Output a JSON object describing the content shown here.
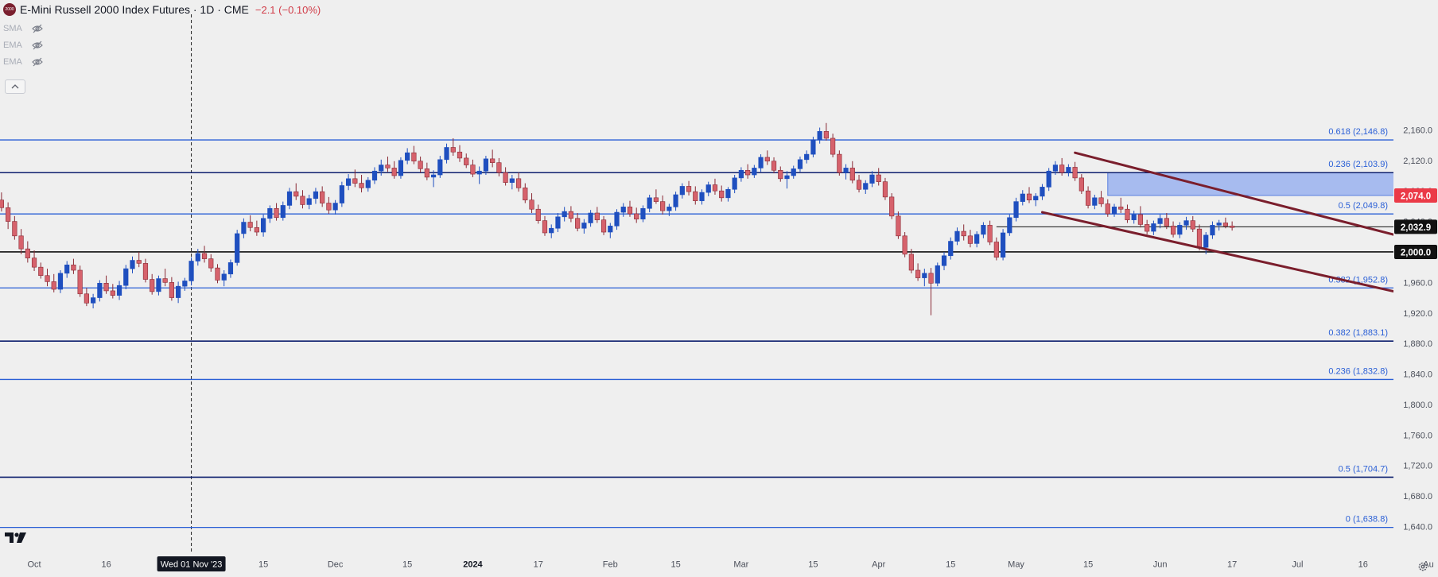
{
  "header": {
    "logo_text": "2000",
    "title": "E-Mini Russell 2000 Index Futures · 1D · CME",
    "change": "−2.1 (−0.10%)"
  },
  "indicators": [
    {
      "label": "SMA",
      "icon": "eye-off-icon"
    },
    {
      "label": "EMA",
      "icon": "eye-off-icon"
    },
    {
      "label": "EMA",
      "icon": "eye-off-icon"
    }
  ],
  "colors": {
    "background": "#efefef",
    "up": "#1f4fbf",
    "down": "#d6626c",
    "fib_line": "#2a5fd6",
    "fib_label": "#2a5fd6",
    "trendline": "#7a1e2c",
    "zone": "#8fa9ef",
    "price_tag": "#eb3a47",
    "black_tag": "#111111",
    "axis_text": "#4b4f5a"
  },
  "chart_data": {
    "type": "candlestick",
    "title": "E-Mini Russell 2000 Index Futures · 1D · CME",
    "ylim": [
      1622,
      2176
    ],
    "y_ticks": [
      1640,
      1680,
      1720,
      1760,
      1800,
      1840,
      1880,
      1920,
      1960,
      2000,
      2040,
      2080,
      2120,
      2160
    ],
    "y_tick_labels": [
      "1,640.0",
      "1,680.0",
      "1,720.0",
      "1,760.0",
      "1,800.0",
      "1,840.0",
      "1,880.0",
      "1,920.0",
      "1,960.0",
      "2,000.0",
      "2,040.0",
      "2,080.0",
      "2,120.0",
      "2,160.0"
    ],
    "x_labels": [
      "Oct",
      "16",
      "Wed 01 Nov '23",
      "15",
      "Dec",
      "15",
      "2024",
      "17",
      "Feb",
      "15",
      "Mar",
      "15",
      "Apr",
      "15",
      "May",
      "15",
      "Jun",
      "17",
      "Jul",
      "16",
      "Au"
    ],
    "x_label_bars": [
      5,
      16,
      29,
      40,
      51,
      62,
      72,
      82,
      93,
      103,
      113,
      124,
      134,
      145,
      155,
      166,
      177,
      188,
      198,
      208,
      218
    ],
    "crosshair_label": "Wed 01 Nov '23",
    "crosshair_bar": 29,
    "fib_levels": [
      {
        "value": 2146.8,
        "label": "0.618 (2,146.8)",
        "style": "blue"
      },
      {
        "value": 2103.9,
        "label": "0.236 (2,103.9)",
        "style": "navy"
      },
      {
        "value": 2049.8,
        "label": "0.5 (2,049.8)",
        "style": "blue"
      },
      {
        "value": 1952.8,
        "label": "0.382 (1,952.8)",
        "style": "blue"
      },
      {
        "value": 1883.1,
        "label": "0.382 (1,883.1)",
        "style": "navy"
      },
      {
        "value": 1832.8,
        "label": "0.236 (1,832.8)",
        "style": "blue"
      },
      {
        "value": 1704.7,
        "label": "0.5 (1,704.7)",
        "style": "navy"
      },
      {
        "value": 1638.8,
        "label": "0 (1,638.8)",
        "style": "blue"
      }
    ],
    "horizontal_lines": [
      {
        "value": 2000.0,
        "label": "2,000.0",
        "color": "black"
      },
      {
        "value": 2032.9,
        "label": "2,032.9",
        "color": "black",
        "thin": true,
        "from_bar": 152
      }
    ],
    "price_tags": [
      {
        "value": 2074.0,
        "label": "2,074.0",
        "color": "red"
      },
      {
        "value": 2032.9,
        "label": "2,032.9",
        "color": "black"
      },
      {
        "value": 2000.0,
        "label": "2,000.0",
        "color": "black"
      }
    ],
    "zone": {
      "from_bar": 169,
      "to_bar": 213,
      "top": 2104,
      "bottom": 2074
    },
    "trendlines": [
      {
        "x1": 164,
        "y1": 2130,
        "x2": 218,
        "y2": 2011
      },
      {
        "x1": 159,
        "y1": 2052,
        "x2": 218,
        "y2": 1938
      }
    ],
    "candles": [
      [
        2068,
        2078,
        2053,
        2058
      ],
      [
        2058,
        2065,
        2030,
        2040
      ],
      [
        2040,
        2047,
        2016,
        2021
      ],
      [
        2021,
        2030,
        1997,
        2004
      ],
      [
        2004,
        2014,
        1986,
        1992
      ],
      [
        1992,
        2002,
        1975,
        1980
      ],
      [
        1980,
        1986,
        1965,
        1969
      ],
      [
        1969,
        1978,
        1955,
        1961
      ],
      [
        1961,
        1971,
        1947,
        1951
      ],
      [
        1951,
        1976,
        1946,
        1972
      ],
      [
        1972,
        1988,
        1966,
        1983
      ],
      [
        1983,
        1991,
        1971,
        1976
      ],
      [
        1976,
        1982,
        1941,
        1945
      ],
      [
        1945,
        1953,
        1929,
        1933
      ],
      [
        1933,
        1945,
        1926,
        1940
      ],
      [
        1940,
        1963,
        1935,
        1959
      ],
      [
        1959,
        1969,
        1945,
        1949
      ],
      [
        1949,
        1958,
        1939,
        1943
      ],
      [
        1943,
        1962,
        1937,
        1956
      ],
      [
        1956,
        1983,
        1951,
        1978
      ],
      [
        1978,
        1994,
        1972,
        1989
      ],
      [
        1989,
        2000,
        1980,
        1985
      ],
      [
        1985,
        1991,
        1960,
        1964
      ],
      [
        1964,
        1971,
        1944,
        1948
      ],
      [
        1948,
        1969,
        1943,
        1965
      ],
      [
        1965,
        1978,
        1955,
        1960
      ],
      [
        1960,
        1967,
        1936,
        1940
      ],
      [
        1940,
        1961,
        1933,
        1955
      ],
      [
        1955,
        1966,
        1949,
        1962
      ],
      [
        1962,
        1993,
        1956,
        1988
      ],
      [
        1988,
        2004,
        1982,
        1998
      ],
      [
        1998,
        2008,
        1986,
        1991
      ],
      [
        1991,
        1997,
        1974,
        1979
      ],
      [
        1979,
        1984,
        1959,
        1963
      ],
      [
        1963,
        1976,
        1955,
        1971
      ],
      [
        1971,
        1990,
        1966,
        1986
      ],
      [
        1986,
        2029,
        1982,
        2024
      ],
      [
        2024,
        2044,
        2018,
        2039
      ],
      [
        2039,
        2048,
        2027,
        2032
      ],
      [
        2032,
        2041,
        2021,
        2026
      ],
      [
        2026,
        2049,
        2020,
        2044
      ],
      [
        2044,
        2061,
        2038,
        2057
      ],
      [
        2057,
        2064,
        2041,
        2045
      ],
      [
        2045,
        2066,
        2041,
        2061
      ],
      [
        2061,
        2084,
        2056,
        2079
      ],
      [
        2079,
        2090,
        2068,
        2073
      ],
      [
        2073,
        2081,
        2057,
        2062
      ],
      [
        2062,
        2075,
        2056,
        2070
      ],
      [
        2070,
        2084,
        2063,
        2079
      ],
      [
        2079,
        2086,
        2059,
        2064
      ],
      [
        2064,
        2072,
        2050,
        2055
      ],
      [
        2055,
        2068,
        2049,
        2064
      ],
      [
        2064,
        2092,
        2059,
        2087
      ],
      [
        2087,
        2102,
        2081,
        2096
      ],
      [
        2096,
        2108,
        2085,
        2090
      ],
      [
        2090,
        2101,
        2078,
        2084
      ],
      [
        2084,
        2098,
        2079,
        2094
      ],
      [
        2094,
        2111,
        2089,
        2106
      ],
      [
        2106,
        2121,
        2100,
        2114
      ],
      [
        2114,
        2125,
        2105,
        2110
      ],
      [
        2110,
        2119,
        2096,
        2100
      ],
      [
        2100,
        2124,
        2096,
        2120
      ],
      [
        2120,
        2136,
        2115,
        2130
      ],
      [
        2130,
        2139,
        2115,
        2119
      ],
      [
        2119,
        2125,
        2104,
        2109
      ],
      [
        2109,
        2117,
        2094,
        2098
      ],
      [
        2098,
        2107,
        2085,
        2101
      ],
      [
        2101,
        2126,
        2097,
        2121
      ],
      [
        2121,
        2142,
        2116,
        2137
      ],
      [
        2137,
        2149,
        2126,
        2131
      ],
      [
        2131,
        2140,
        2118,
        2123
      ],
      [
        2123,
        2129,
        2110,
        2114
      ],
      [
        2114,
        2121,
        2098,
        2102
      ],
      [
        2102,
        2112,
        2089,
        2106
      ],
      [
        2106,
        2126,
        2101,
        2122
      ],
      [
        2122,
        2134,
        2111,
        2117
      ],
      [
        2117,
        2123,
        2099,
        2104
      ],
      [
        2104,
        2111,
        2087,
        2091
      ],
      [
        2091,
        2101,
        2082,
        2096
      ],
      [
        2096,
        2104,
        2079,
        2084
      ],
      [
        2084,
        2090,
        2064,
        2068
      ],
      [
        2068,
        2077,
        2051,
        2056
      ],
      [
        2056,
        2062,
        2037,
        2041
      ],
      [
        2041,
        2047,
        2021,
        2025
      ],
      [
        2025,
        2036,
        2018,
        2031
      ],
      [
        2031,
        2051,
        2026,
        2046
      ],
      [
        2046,
        2059,
        2040,
        2053
      ],
      [
        2053,
        2060,
        2039,
        2044
      ],
      [
        2044,
        2051,
        2027,
        2031
      ],
      [
        2031,
        2043,
        2024,
        2038
      ],
      [
        2038,
        2055,
        2033,
        2051
      ],
      [
        2051,
        2059,
        2038,
        2042
      ],
      [
        2042,
        2047,
        2022,
        2026
      ],
      [
        2026,
        2038,
        2018,
        2034
      ],
      [
        2034,
        2056,
        2029,
        2052
      ],
      [
        2052,
        2064,
        2046,
        2059
      ],
      [
        2059,
        2067,
        2046,
        2050
      ],
      [
        2050,
        2058,
        2038,
        2043
      ],
      [
        2043,
        2061,
        2039,
        2057
      ],
      [
        2057,
        2075,
        2052,
        2071
      ],
      [
        2071,
        2082,
        2063,
        2066
      ],
      [
        2066,
        2074,
        2049,
        2054
      ],
      [
        2054,
        2063,
        2047,
        2059
      ],
      [
        2059,
        2079,
        2054,
        2075
      ],
      [
        2075,
        2090,
        2070,
        2086
      ],
      [
        2086,
        2093,
        2074,
        2079
      ],
      [
        2079,
        2086,
        2062,
        2067
      ],
      [
        2067,
        2082,
        2062,
        2078
      ],
      [
        2078,
        2092,
        2073,
        2088
      ],
      [
        2088,
        2096,
        2075,
        2080
      ],
      [
        2080,
        2087,
        2066,
        2071
      ],
      [
        2071,
        2085,
        2066,
        2082
      ],
      [
        2082,
        2101,
        2077,
        2097
      ],
      [
        2097,
        2111,
        2092,
        2107
      ],
      [
        2107,
        2115,
        2096,
        2101
      ],
      [
        2101,
        2114,
        2097,
        2110
      ],
      [
        2110,
        2128,
        2105,
        2124
      ],
      [
        2124,
        2133,
        2114,
        2119
      ],
      [
        2119,
        2124,
        2103,
        2107
      ],
      [
        2107,
        2112,
        2092,
        2096
      ],
      [
        2096,
        2106,
        2083,
        2100
      ],
      [
        2100,
        2113,
        2096,
        2109
      ],
      [
        2109,
        2125,
        2105,
        2121
      ],
      [
        2121,
        2133,
        2116,
        2128
      ],
      [
        2128,
        2151,
        2124,
        2147
      ],
      [
        2147,
        2163,
        2142,
        2158
      ],
      [
        2158,
        2169,
        2146,
        2149
      ],
      [
        2149,
        2155,
        2124,
        2128
      ],
      [
        2128,
        2133,
        2100,
        2104
      ],
      [
        2104,
        2115,
        2095,
        2110
      ],
      [
        2110,
        2119,
        2090,
        2094
      ],
      [
        2094,
        2101,
        2078,
        2082
      ],
      [
        2082,
        2094,
        2076,
        2090
      ],
      [
        2090,
        2106,
        2085,
        2101
      ],
      [
        2101,
        2110,
        2087,
        2092
      ],
      [
        2092,
        2097,
        2068,
        2072
      ],
      [
        2072,
        2077,
        2043,
        2047
      ],
      [
        2047,
        2053,
        2017,
        2021
      ],
      [
        2021,
        2026,
        1993,
        1997
      ],
      [
        1997,
        2004,
        1972,
        1976
      ],
      [
        1976,
        1985,
        1962,
        1966
      ],
      [
        1966,
        1978,
        1955,
        1972
      ],
      [
        1972,
        1979,
        1917,
        1959
      ],
      [
        1959,
        1986,
        1955,
        1982
      ],
      [
        1982,
        2000,
        1976,
        1995
      ],
      [
        1995,
        2019,
        1990,
        2014
      ],
      [
        2014,
        2032,
        2009,
        2027
      ],
      [
        2027,
        2036,
        2015,
        2021
      ],
      [
        2021,
        2029,
        2006,
        2011
      ],
      [
        2011,
        2027,
        2006,
        2023
      ],
      [
        2023,
        2039,
        2018,
        2035
      ],
      [
        2035,
        2041,
        2009,
        2013
      ],
      [
        2013,
        2019,
        1989,
        1993
      ],
      [
        1993,
        2030,
        1989,
        2025
      ],
      [
        2025,
        2049,
        2021,
        2045
      ],
      [
        2045,
        2071,
        2040,
        2066
      ],
      [
        2066,
        2081,
        2061,
        2076
      ],
      [
        2076,
        2085,
        2064,
        2068
      ],
      [
        2068,
        2077,
        2060,
        2073
      ],
      [
        2073,
        2089,
        2068,
        2085
      ],
      [
        2085,
        2110,
        2080,
        2106
      ],
      [
        2106,
        2119,
        2101,
        2114
      ],
      [
        2114,
        2123,
        2100,
        2104
      ],
      [
        2104,
        2115,
        2099,
        2111
      ],
      [
        2111,
        2118,
        2093,
        2097
      ],
      [
        2097,
        2102,
        2076,
        2080
      ],
      [
        2080,
        2086,
        2057,
        2061
      ],
      [
        2061,
        2075,
        2056,
        2071
      ],
      [
        2071,
        2080,
        2059,
        2063
      ],
      [
        2063,
        2069,
        2046,
        2050
      ],
      [
        2050,
        2063,
        2046,
        2059
      ],
      [
        2059,
        2071,
        2051,
        2056
      ],
      [
        2056,
        2062,
        2038,
        2042
      ],
      [
        2042,
        2054,
        2037,
        2049
      ],
      [
        2049,
        2060,
        2032,
        2036
      ],
      [
        2036,
        2042,
        2023,
        2027
      ],
      [
        2027,
        2041,
        2022,
        2037
      ],
      [
        2037,
        2049,
        2031,
        2044
      ],
      [
        2044,
        2051,
        2030,
        2034
      ],
      [
        2034,
        2040,
        2019,
        2023
      ],
      [
        2023,
        2039,
        2018,
        2035
      ],
      [
        2035,
        2046,
        2029,
        2041
      ],
      [
        2041,
        2047,
        2026,
        2030
      ],
      [
        2030,
        2036,
        2002,
        2006
      ],
      [
        2006,
        2026,
        1997,
        2022
      ],
      [
        2022,
        2040,
        2017,
        2035
      ],
      [
        2035,
        2042,
        2028,
        2038
      ],
      [
        2038,
        2045,
        2031,
        2034
      ],
      [
        2034,
        2040,
        2028,
        2032
      ]
    ]
  }
}
